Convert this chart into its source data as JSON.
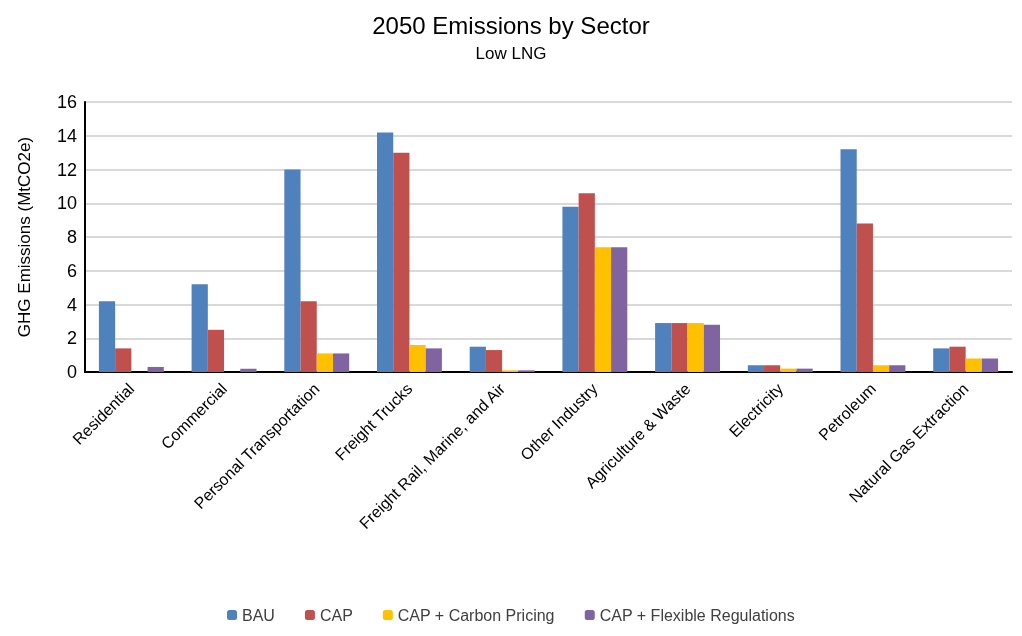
{
  "chart_data": {
    "type": "bar",
    "title": "2050 Emissions by Sector",
    "subtitle": "Low LNG",
    "ylabel": "GHG Emissions (MtCO2e)",
    "categories": [
      "Residential",
      "Commercial",
      "Personal Transportation",
      "Freight Trucks",
      "Freight Rail, Marine, and Air",
      "Other Industry",
      "Agriculture & Waste",
      "Electricity",
      "Petroleum",
      "Natural Gas Extraction"
    ],
    "series": [
      {
        "name": "BAU",
        "color": "#4f81bd",
        "values": [
          4.2,
          5.2,
          12.0,
          14.2,
          1.5,
          9.8,
          2.9,
          0.4,
          13.2,
          1.4
        ]
      },
      {
        "name": "CAP",
        "color": "#c0504d",
        "values": [
          1.4,
          2.5,
          4.2,
          13.0,
          1.3,
          10.6,
          2.9,
          0.4,
          8.8,
          1.5
        ]
      },
      {
        "name": "CAP + Carbon Pricing",
        "color": "#ffc000",
        "values": [
          0,
          0,
          1.1,
          1.6,
          0.1,
          7.4,
          2.9,
          0.2,
          0.4,
          0.8
        ]
      },
      {
        "name": "CAP + Flexible Regulations",
        "color": "#8064a2",
        "values": [
          0.3,
          0.2,
          1.1,
          1.4,
          0.1,
          7.4,
          2.8,
          0.2,
          0.4,
          0.8
        ]
      }
    ],
    "ylim": [
      0,
      16
    ],
    "yticks": [
      0,
      2,
      4,
      6,
      8,
      10,
      12,
      14,
      16
    ],
    "grid": "y",
    "legend": "bottom"
  }
}
